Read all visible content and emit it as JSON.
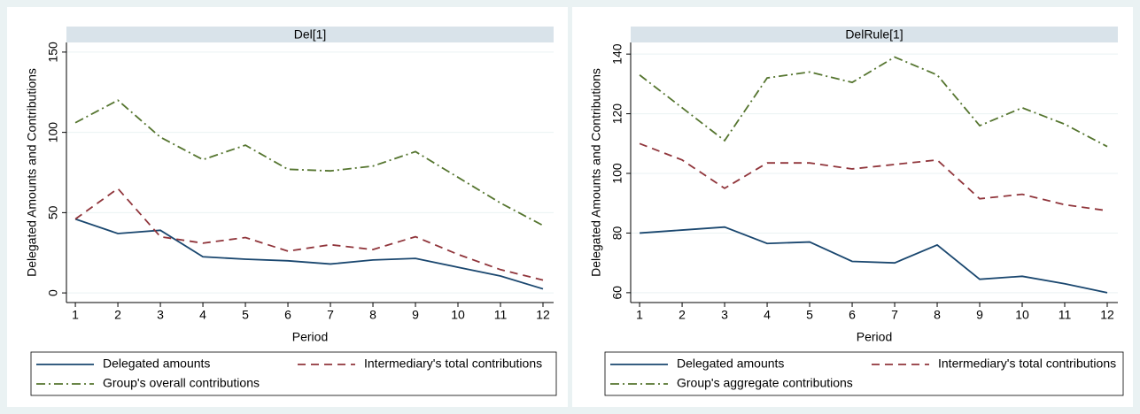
{
  "chart_data": [
    {
      "type": "line",
      "title": "Del[1]",
      "x_label": "Period",
      "y_label": "Delegated Amounts and Contributions",
      "x": [
        1,
        2,
        3,
        4,
        5,
        6,
        7,
        8,
        9,
        10,
        11,
        12
      ],
      "xlim": [
        0.79,
        12.25
      ],
      "xticks": [
        1,
        2,
        3,
        4,
        5,
        6,
        7,
        8,
        9,
        10,
        11,
        12
      ],
      "ylim": [
        -6,
        156
      ],
      "yticks": [
        0,
        50,
        100,
        150
      ],
      "grid": true,
      "series": [
        {
          "name": "Delegated amounts",
          "color": "#1a476f",
          "dash": "solid",
          "values": [
            46,
            37,
            39,
            22.5,
            21,
            20,
            18,
            20.5,
            21.5,
            16,
            10.5,
            2.5
          ]
        },
        {
          "name": "Intermediary's total contributions",
          "color": "#90353b",
          "dash": "dash",
          "values": [
            46,
            65,
            35,
            31,
            34.5,
            26,
            30,
            27,
            35,
            24,
            14.5,
            8
          ]
        },
        {
          "name": "Group's overall contributions",
          "color": "#55752f",
          "dash": "dashdot",
          "values": [
            106,
            120,
            97,
            83,
            92,
            77,
            76,
            79,
            88,
            72,
            56,
            42
          ]
        }
      ]
    },
    {
      "type": "line",
      "title": "DelRule[1]",
      "x_label": "Period",
      "y_label": "Delegated Amounts and Contributions",
      "x": [
        1,
        2,
        3,
        4,
        5,
        6,
        7,
        8,
        9,
        10,
        11,
        12
      ],
      "xlim": [
        0.79,
        12.25
      ],
      "xticks": [
        1,
        2,
        3,
        4,
        5,
        6,
        7,
        8,
        9,
        10,
        11,
        12
      ],
      "ylim": [
        56.7,
        143.9
      ],
      "yticks": [
        60,
        80,
        100,
        120,
        140
      ],
      "grid": true,
      "series": [
        {
          "name": "Delegated amounts",
          "color": "#1a476f",
          "dash": "solid",
          "values": [
            80,
            81,
            82,
            76.5,
            77,
            70.5,
            70,
            76,
            64.5,
            65.5,
            63,
            60
          ]
        },
        {
          "name": "Intermediary's total contributions",
          "color": "#90353b",
          "dash": "dash",
          "values": [
            110,
            104.5,
            95,
            103.5,
            103.5,
            101.5,
            103,
            104.5,
            91.5,
            93,
            89.5,
            87.5
          ]
        },
        {
          "name": "Group's aggregate contributions",
          "color": "#55752f",
          "dash": "dashdot",
          "values": [
            133,
            122,
            111,
            132,
            134,
            130.5,
            139,
            133,
            116,
            122,
            116.5,
            109
          ]
        }
      ]
    }
  ]
}
